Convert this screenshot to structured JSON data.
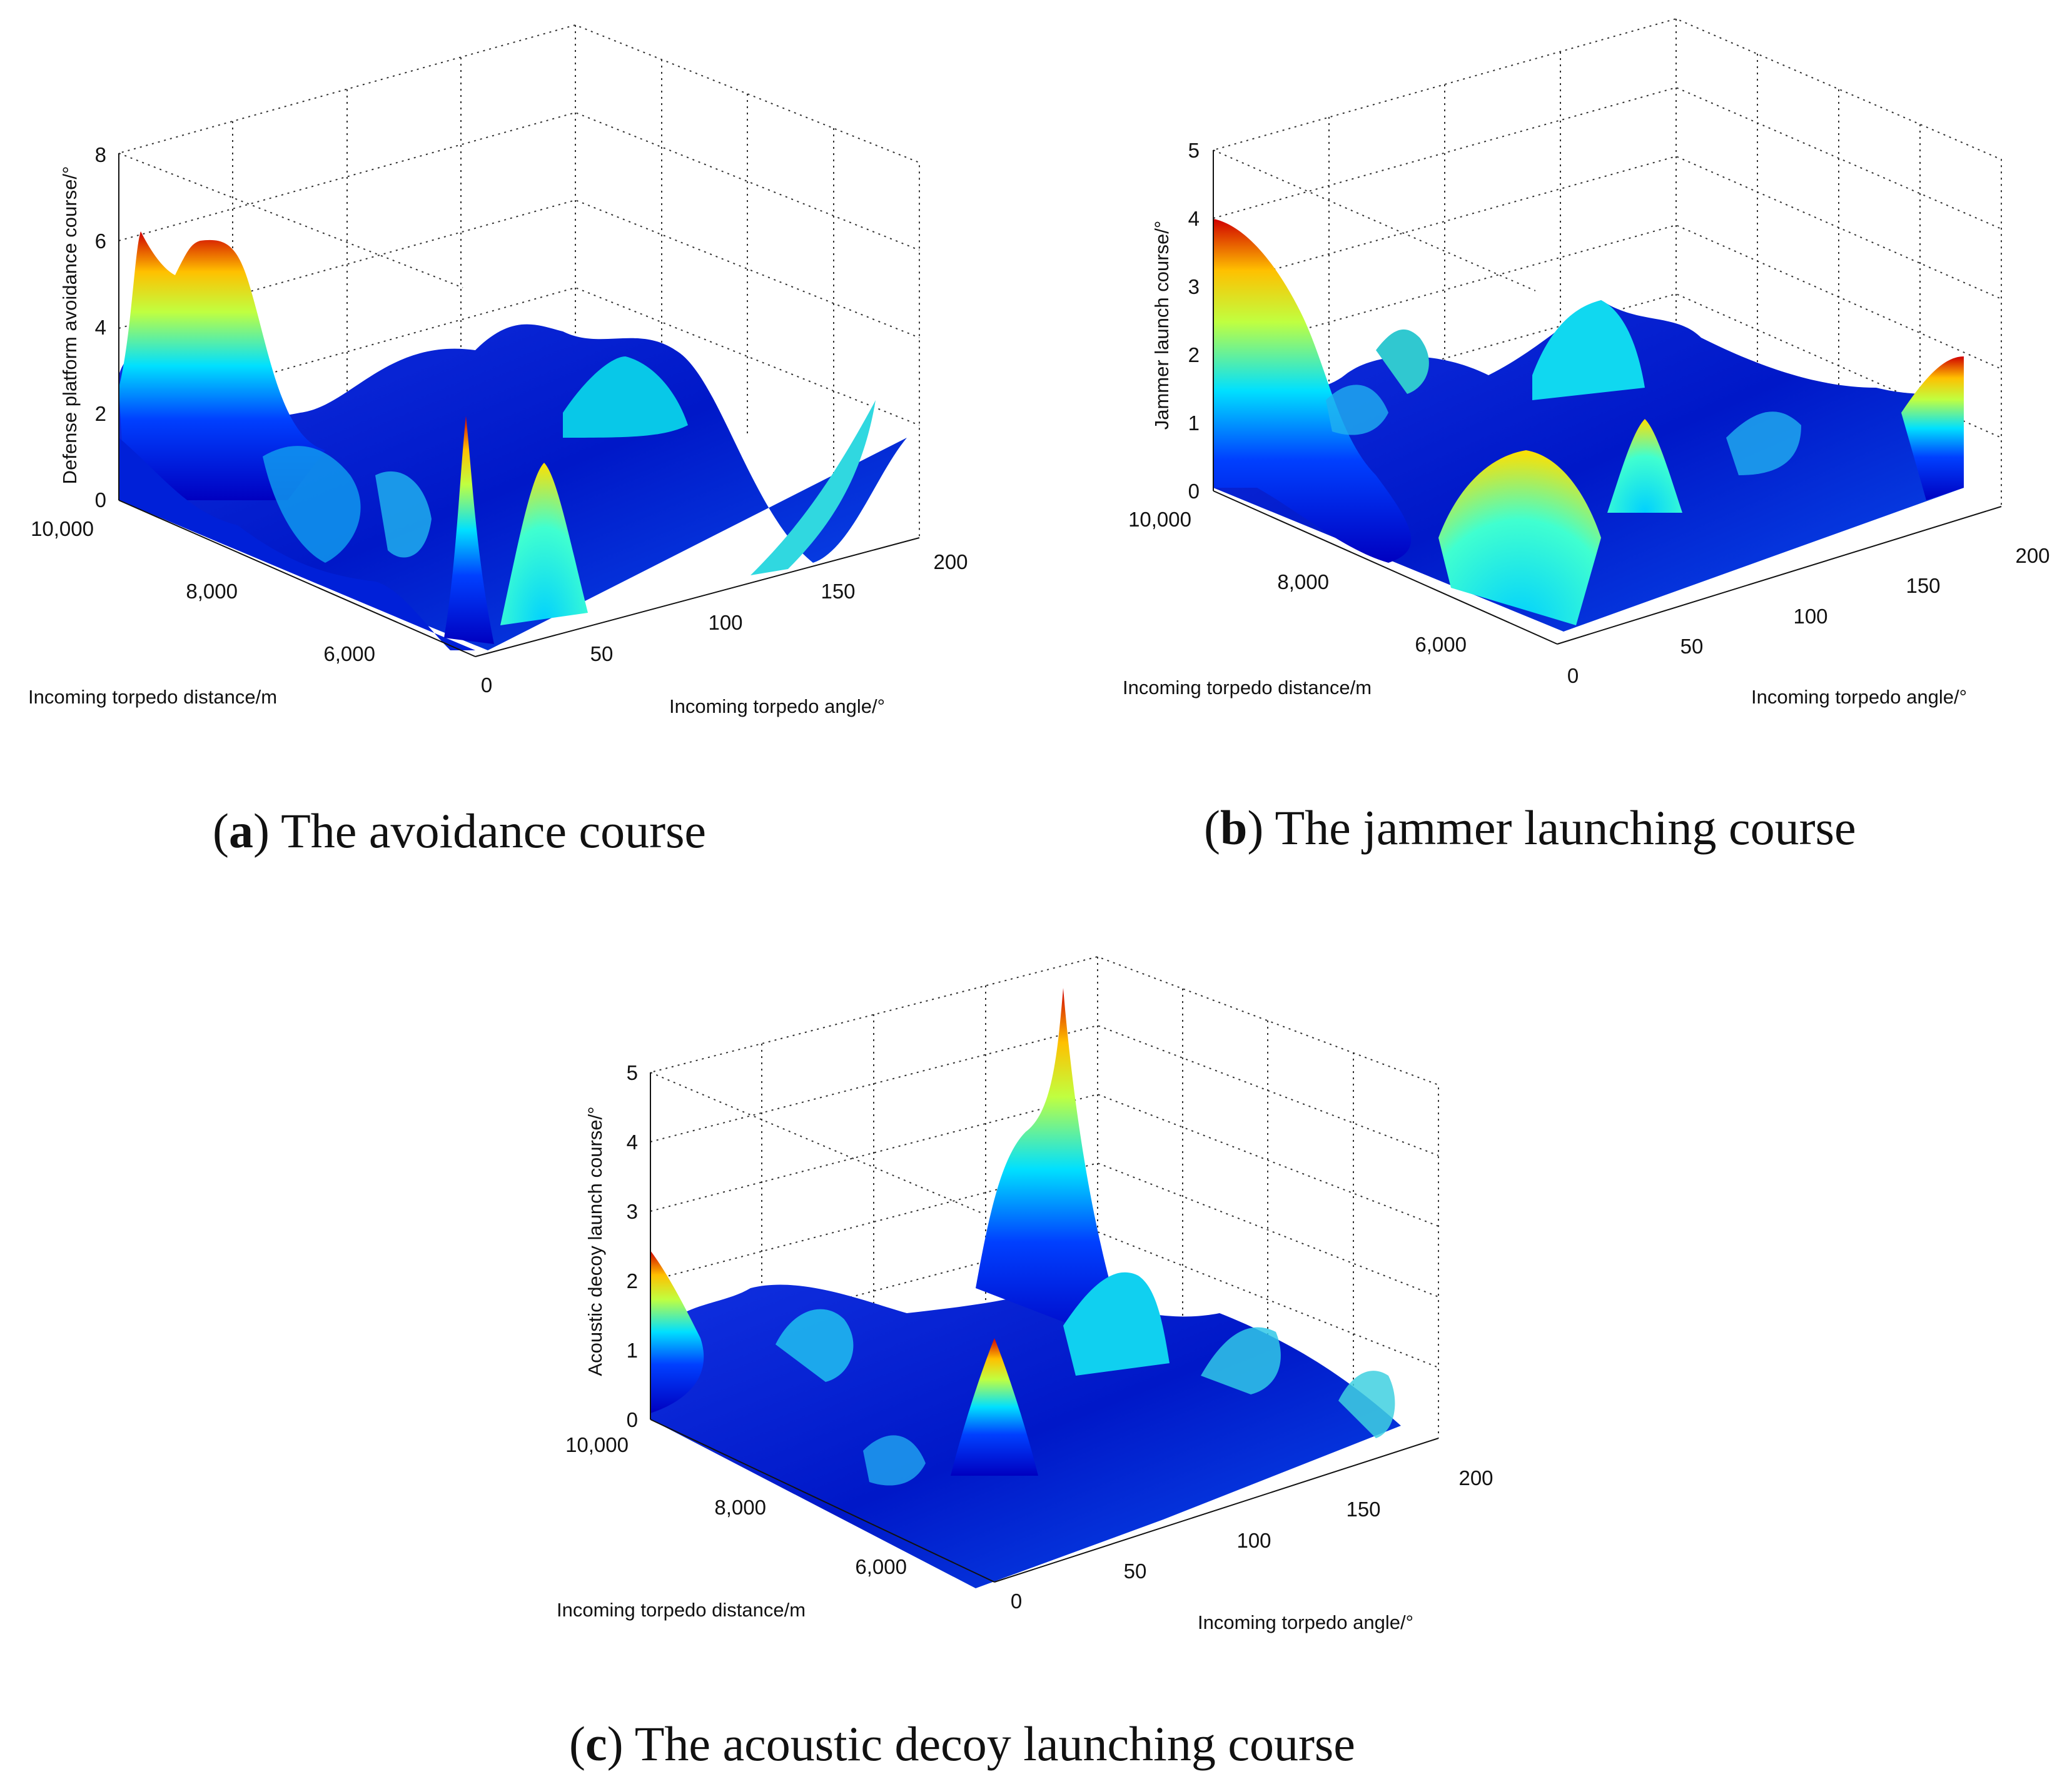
{
  "figure_caption": {
    "panels": [
      {
        "letter": "a",
        "text": "The avoidance course"
      },
      {
        "letter": "b",
        "text": "The jammer launching course"
      },
      {
        "letter": "c",
        "text": "The acoustic decoy launching course"
      }
    ]
  },
  "chart_data": [
    {
      "type": "surface",
      "title": "",
      "xlabel": "Incoming torpedo angle/°",
      "ylabel": "Incoming torpedo distance/m",
      "zlabel": "Defense platform avoidance course/°",
      "x_ticks": [
        "0",
        "50",
        "100",
        "150",
        "200"
      ],
      "y_ticks": [
        "10,000",
        "8,000",
        "6,000"
      ],
      "z_ticks": [
        "0",
        "2",
        "4",
        "6",
        "8"
      ],
      "xlim": [
        0,
        200
      ],
      "ylim": [
        5000,
        10000
      ],
      "zlim": [
        0,
        8
      ],
      "colormap": "jet",
      "peaks": [
        {
          "angle": 5,
          "distance": 9900,
          "value": 6.2
        },
        {
          "angle": 25,
          "distance": 9600,
          "value": 5.8
        },
        {
          "angle": 45,
          "distance": 6000,
          "value": 3.3
        },
        {
          "angle": 70,
          "distance": 5700,
          "value": 2.6
        },
        {
          "angle": 200,
          "distance": 5200,
          "value": 2.3
        }
      ]
    },
    {
      "type": "surface",
      "title": "",
      "xlabel": "Incoming torpedo angle/°",
      "ylabel": "Incoming torpedo distance/m",
      "zlabel": "Jammer launch course/°",
      "x_ticks": [
        "0",
        "50",
        "100",
        "150",
        "200"
      ],
      "y_ticks": [
        "10,000",
        "8,000",
        "6,000"
      ],
      "z_ticks": [
        "0",
        "1",
        "2",
        "3",
        "4",
        "5"
      ],
      "xlim": [
        0,
        200
      ],
      "ylim": [
        5000,
        10000
      ],
      "zlim": [
        0,
        5
      ],
      "colormap": "jet",
      "peaks": [
        {
          "angle": 0,
          "distance": 10000,
          "value": 4.0
        },
        {
          "angle": 120,
          "distance": 6200,
          "value": 2.0
        },
        {
          "angle": 150,
          "distance": 5800,
          "value": 1.9
        },
        {
          "angle": 200,
          "distance": 5000,
          "value": 2.1
        }
      ]
    },
    {
      "type": "surface",
      "title": "",
      "xlabel": "Incoming torpedo angle/°",
      "ylabel": "Incoming torpedo distance/m",
      "zlabel": "Acoustic decoy launch course/°",
      "x_ticks": [
        "0",
        "50",
        "100",
        "150",
        "200"
      ],
      "y_ticks": [
        "10,000",
        "8,000",
        "6,000"
      ],
      "z_ticks": [
        "0",
        "1",
        "2",
        "3",
        "4",
        "5"
      ],
      "xlim": [
        0,
        200
      ],
      "ylim": [
        5000,
        10000
      ],
      "zlim": [
        0,
        5
      ],
      "colormap": "jet",
      "peaks": [
        {
          "angle": 0,
          "distance": 10000,
          "value": 2.5
        },
        {
          "angle": 130,
          "distance": 8600,
          "value": 5.2
        },
        {
          "angle": 60,
          "distance": 6200,
          "value": 2.7
        }
      ]
    }
  ]
}
